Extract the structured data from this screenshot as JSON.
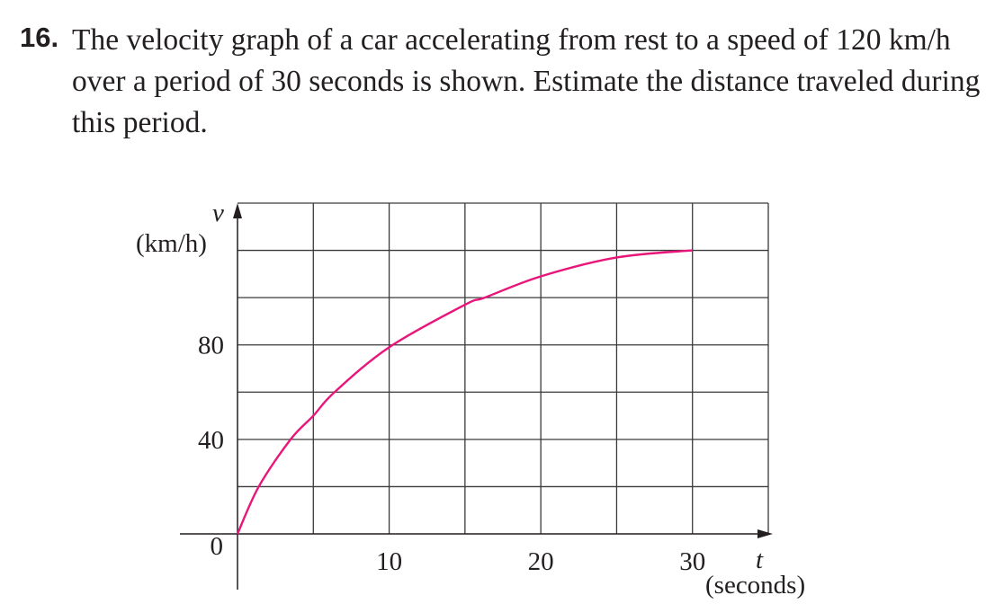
{
  "problem": {
    "number": "16.",
    "text": "The velocity graph of a car accelerating from rest to a speed of 120 km/h over a period of 30 seconds is shown. Estimate the distance traveled during this period."
  },
  "chart_data": {
    "type": "line",
    "title": "",
    "xlabel": "t",
    "xlabel_unit": "(seconds)",
    "ylabel": "v",
    "ylabel_unit": "(km/h)",
    "xlim": [
      0,
      35
    ],
    "ylim": [
      0,
      140
    ],
    "x_grid_step": 5,
    "y_grid_step": 20,
    "grid": true,
    "x_ticks": [
      {
        "value": 0,
        "label": "0"
      },
      {
        "value": 10,
        "label": "10"
      },
      {
        "value": 20,
        "label": "20"
      },
      {
        "value": 30,
        "label": "30"
      }
    ],
    "y_ticks": [
      {
        "value": 40,
        "label": "40"
      },
      {
        "value": 80,
        "label": "80"
      }
    ],
    "series": [
      {
        "color": "#e8157a",
        "x": [
          0,
          1.4,
          3.5,
          5,
          6.4,
          10,
          15,
          16.3,
          20,
          25,
          30
        ],
        "y": [
          0,
          20,
          40,
          50,
          60,
          79,
          97,
          100,
          109,
          117,
          120
        ]
      }
    ]
  }
}
